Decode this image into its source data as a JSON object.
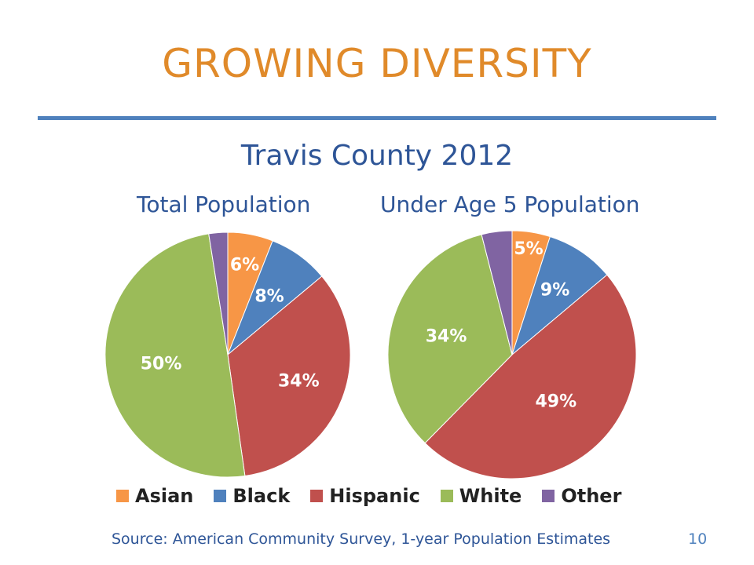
{
  "slide": {
    "title": "GROWING DIVERSITY",
    "subtitle": "Travis County  2012",
    "source": "Source:  American Community Survey, 1-year Population Estimates",
    "page_number": "10"
  },
  "colors": {
    "title": "#E08A2A",
    "rule": "#4F81BD",
    "text_blue": "#2E5597"
  },
  "chart_data": [
    {
      "type": "pie",
      "title": "Total Population",
      "categories": [
        "Asian",
        "Black",
        "Hispanic",
        "White",
        "Other"
      ],
      "values": [
        6,
        8,
        34,
        50,
        2.5
      ],
      "labels": [
        "6%",
        "8%",
        "34%",
        "50%",
        ""
      ],
      "colors": [
        "#F79646",
        "#4F81BD",
        "#C0504D",
        "#9BBB59",
        "#8064A2"
      ],
      "legend": "bottom"
    },
    {
      "type": "pie",
      "title": "Under Age 5 Population",
      "categories": [
        "Asian",
        "Black",
        "Hispanic",
        "White",
        "Other"
      ],
      "values": [
        5,
        9,
        49,
        34,
        4
      ],
      "labels": [
        "5%",
        "9%",
        "49%",
        "34%",
        ""
      ],
      "colors": [
        "#F79646",
        "#4F81BD",
        "#C0504D",
        "#9BBB59",
        "#8064A2"
      ],
      "legend": "bottom"
    }
  ],
  "legend": [
    {
      "label": "Asian",
      "color": "#F79646"
    },
    {
      "label": "Black",
      "color": "#4F81BD"
    },
    {
      "label": "Hispanic",
      "color": "#C0504D"
    },
    {
      "label": "White",
      "color": "#9BBB59"
    },
    {
      "label": "Other",
      "color": "#8064A2"
    }
  ]
}
